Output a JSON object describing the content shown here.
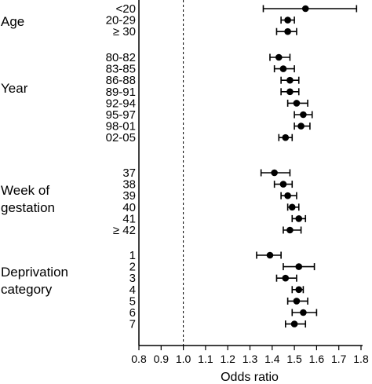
{
  "chart_data": {
    "type": "forest",
    "xlabel": "Odds ratio",
    "xlim": [
      0.8,
      1.8
    ],
    "xticks": [
      "0.8",
      "0.9",
      "1.0",
      "1.1",
      "1.2",
      "1.3",
      "1.4",
      "1.5",
      "1.6",
      "1.7",
      "1.8"
    ],
    "reference_line": 1.0,
    "groups": [
      {
        "name": "Age",
        "rows": [
          {
            "label": "<20",
            "or": 1.55,
            "lo": 1.36,
            "hi": 1.78
          },
          {
            "label": "20-29",
            "or": 1.47,
            "lo": 1.44,
            "hi": 1.5
          },
          {
            "label": "≥ 30",
            "or": 1.47,
            "lo": 1.42,
            "hi": 1.51
          }
        ]
      },
      {
        "name": "Year",
        "rows": [
          {
            "label": "80-82",
            "or": 1.43,
            "lo": 1.39,
            "hi": 1.48
          },
          {
            "label": "83-85",
            "or": 1.45,
            "lo": 1.41,
            "hi": 1.5
          },
          {
            "label": "86-88",
            "or": 1.48,
            "lo": 1.44,
            "hi": 1.52
          },
          {
            "label": "89-91",
            "or": 1.48,
            "lo": 1.44,
            "hi": 1.52
          },
          {
            "label": "92-94",
            "or": 1.51,
            "lo": 1.47,
            "hi": 1.56
          },
          {
            "label": "95-97",
            "or": 1.54,
            "lo": 1.5,
            "hi": 1.58
          },
          {
            "label": "98-01",
            "or": 1.53,
            "lo": 1.5,
            "hi": 1.57
          },
          {
            "label": "02-05",
            "or": 1.46,
            "lo": 1.43,
            "hi": 1.49
          }
        ]
      },
      {
        "name": "Week of gestation",
        "rows": [
          {
            "label": "37",
            "or": 1.41,
            "lo": 1.35,
            "hi": 1.48
          },
          {
            "label": "38",
            "or": 1.45,
            "lo": 1.41,
            "hi": 1.49
          },
          {
            "label": "39",
            "or": 1.47,
            "lo": 1.44,
            "hi": 1.51
          },
          {
            "label": "40",
            "or": 1.49,
            "lo": 1.47,
            "hi": 1.52
          },
          {
            "label": "41",
            "or": 1.52,
            "lo": 1.49,
            "hi": 1.55
          },
          {
            "label": "≥ 42",
            "or": 1.48,
            "lo": 1.45,
            "hi": 1.53
          }
        ]
      },
      {
        "name": "Deprivation category",
        "rows": [
          {
            "label": "1",
            "or": 1.39,
            "lo": 1.33,
            "hi": 1.44
          },
          {
            "label": "2",
            "or": 1.52,
            "lo": 1.45,
            "hi": 1.59
          },
          {
            "label": "3",
            "or": 1.46,
            "lo": 1.42,
            "hi": 1.51
          },
          {
            "label": "4",
            "or": 1.52,
            "lo": 1.49,
            "hi": 1.54
          },
          {
            "label": "5",
            "or": 1.51,
            "lo": 1.47,
            "hi": 1.56
          },
          {
            "label": "6",
            "or": 1.54,
            "lo": 1.49,
            "hi": 1.6
          },
          {
            "label": "7",
            "or": 1.5,
            "lo": 1.46,
            "hi": 1.55
          }
        ]
      }
    ]
  }
}
